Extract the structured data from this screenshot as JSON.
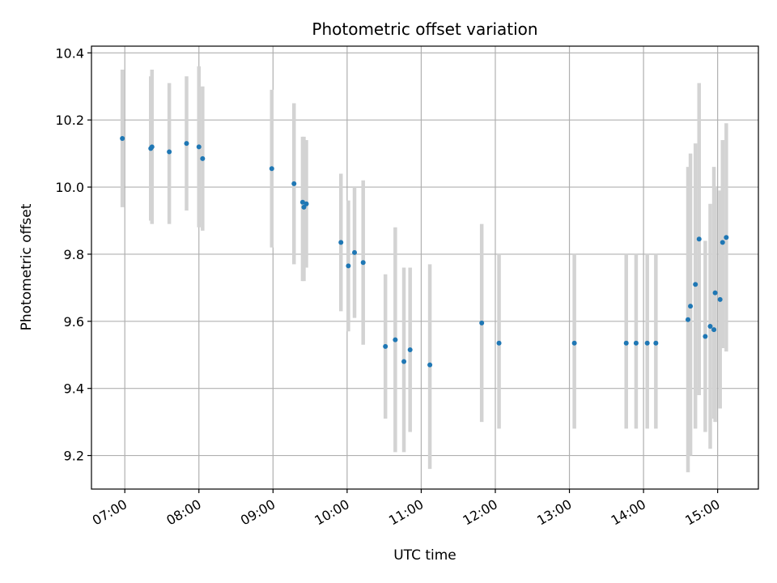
{
  "chart_data": {
    "type": "scatter",
    "title": "Photometric offset variation",
    "xlabel": "UTC time",
    "ylabel": "Photometric offset",
    "x_ticks": [
      "07:00",
      "08:00",
      "09:00",
      "10:00",
      "11:00",
      "12:00",
      "13:00",
      "14:00",
      "15:00"
    ],
    "y_ticks": [
      "9.2",
      "9.4",
      "9.6",
      "9.8",
      "10.0",
      "10.2",
      "10.4"
    ],
    "xlim": [
      "06:33",
      "15:33"
    ],
    "ylim": [
      9.1,
      10.42
    ],
    "grid": true,
    "colors": {
      "points": "#1f77b4",
      "errorbars": "#d3d3d3",
      "grid": "#b0b0b0"
    },
    "points": [
      {
        "x": "06:58",
        "y": 10.145,
        "yerr": [
          9.94,
          10.35
        ]
      },
      {
        "x": "07:21",
        "y": 10.115,
        "yerr": [
          9.9,
          10.33
        ]
      },
      {
        "x": "07:22",
        "y": 10.12,
        "yerr": [
          9.89,
          10.35
        ]
      },
      {
        "x": "07:36",
        "y": 10.105,
        "yerr": [
          9.89,
          10.31
        ]
      },
      {
        "x": "07:50",
        "y": 10.13,
        "yerr": [
          9.93,
          10.33
        ]
      },
      {
        "x": "08:00",
        "y": 10.12,
        "yerr": [
          9.88,
          10.36
        ]
      },
      {
        "x": "08:03",
        "y": 10.085,
        "yerr": [
          9.87,
          10.3
        ]
      },
      {
        "x": "08:59",
        "y": 10.055,
        "yerr": [
          9.82,
          10.29
        ]
      },
      {
        "x": "09:17",
        "y": 10.01,
        "yerr": [
          9.77,
          10.25
        ]
      },
      {
        "x": "09:24",
        "y": 9.955,
        "yerr": [
          9.72,
          10.15
        ]
      },
      {
        "x": "09:25",
        "y": 9.94,
        "yerr": [
          9.72,
          10.15
        ]
      },
      {
        "x": "09:27",
        "y": 9.95,
        "yerr": [
          9.76,
          10.14
        ]
      },
      {
        "x": "09:55",
        "y": 9.835,
        "yerr": [
          9.63,
          10.04
        ]
      },
      {
        "x": "10:01",
        "y": 9.765,
        "yerr": [
          9.57,
          9.96
        ]
      },
      {
        "x": "10:06",
        "y": 9.805,
        "yerr": [
          9.61,
          10.0
        ]
      },
      {
        "x": "10:13",
        "y": 9.775,
        "yerr": [
          9.53,
          10.02
        ]
      },
      {
        "x": "10:31",
        "y": 9.525,
        "yerr": [
          9.31,
          9.74
        ]
      },
      {
        "x": "10:39",
        "y": 9.545,
        "yerr": [
          9.21,
          9.88
        ]
      },
      {
        "x": "10:46",
        "y": 9.48,
        "yerr": [
          9.21,
          9.76
        ]
      },
      {
        "x": "10:51",
        "y": 9.515,
        "yerr": [
          9.27,
          9.76
        ]
      },
      {
        "x": "11:07",
        "y": 9.47,
        "yerr": [
          9.16,
          9.77
        ]
      },
      {
        "x": "11:49",
        "y": 9.595,
        "yerr": [
          9.3,
          9.89
        ]
      },
      {
        "x": "12:03",
        "y": 9.535,
        "yerr": [
          9.28,
          9.8
        ]
      },
      {
        "x": "13:04",
        "y": 9.535,
        "yerr": [
          9.28,
          9.8
        ]
      },
      {
        "x": "13:46",
        "y": 9.535,
        "yerr": [
          9.28,
          9.8
        ]
      },
      {
        "x": "13:54",
        "y": 9.535,
        "yerr": [
          9.28,
          9.8
        ]
      },
      {
        "x": "14:03",
        "y": 9.535,
        "yerr": [
          9.28,
          9.8
        ]
      },
      {
        "x": "14:10",
        "y": 9.535,
        "yerr": [
          9.28,
          9.8
        ]
      },
      {
        "x": "14:36",
        "y": 9.605,
        "yerr": [
          9.15,
          10.06
        ]
      },
      {
        "x": "14:38",
        "y": 9.645,
        "yerr": [
          9.2,
          10.1
        ]
      },
      {
        "x": "14:42",
        "y": 9.71,
        "yerr": [
          9.28,
          10.13
        ]
      },
      {
        "x": "14:45",
        "y": 9.845,
        "yerr": [
          9.38,
          10.31
        ]
      },
      {
        "x": "14:50",
        "y": 9.555,
        "yerr": [
          9.27,
          9.84
        ]
      },
      {
        "x": "14:54",
        "y": 9.585,
        "yerr": [
          9.22,
          9.95
        ]
      },
      {
        "x": "14:57",
        "y": 9.575,
        "yerr": [
          9.31,
          10.06
        ]
      },
      {
        "x": "14:58",
        "y": 9.685,
        "yerr": [
          9.3,
          10.0
        ]
      },
      {
        "x": "15:02",
        "y": 9.665,
        "yerr": [
          9.34,
          9.99
        ]
      },
      {
        "x": "15:04",
        "y": 9.835,
        "yerr": [
          9.52,
          10.14
        ]
      },
      {
        "x": "15:07",
        "y": 9.85,
        "yerr": [
          9.51,
          10.19
        ]
      }
    ]
  }
}
